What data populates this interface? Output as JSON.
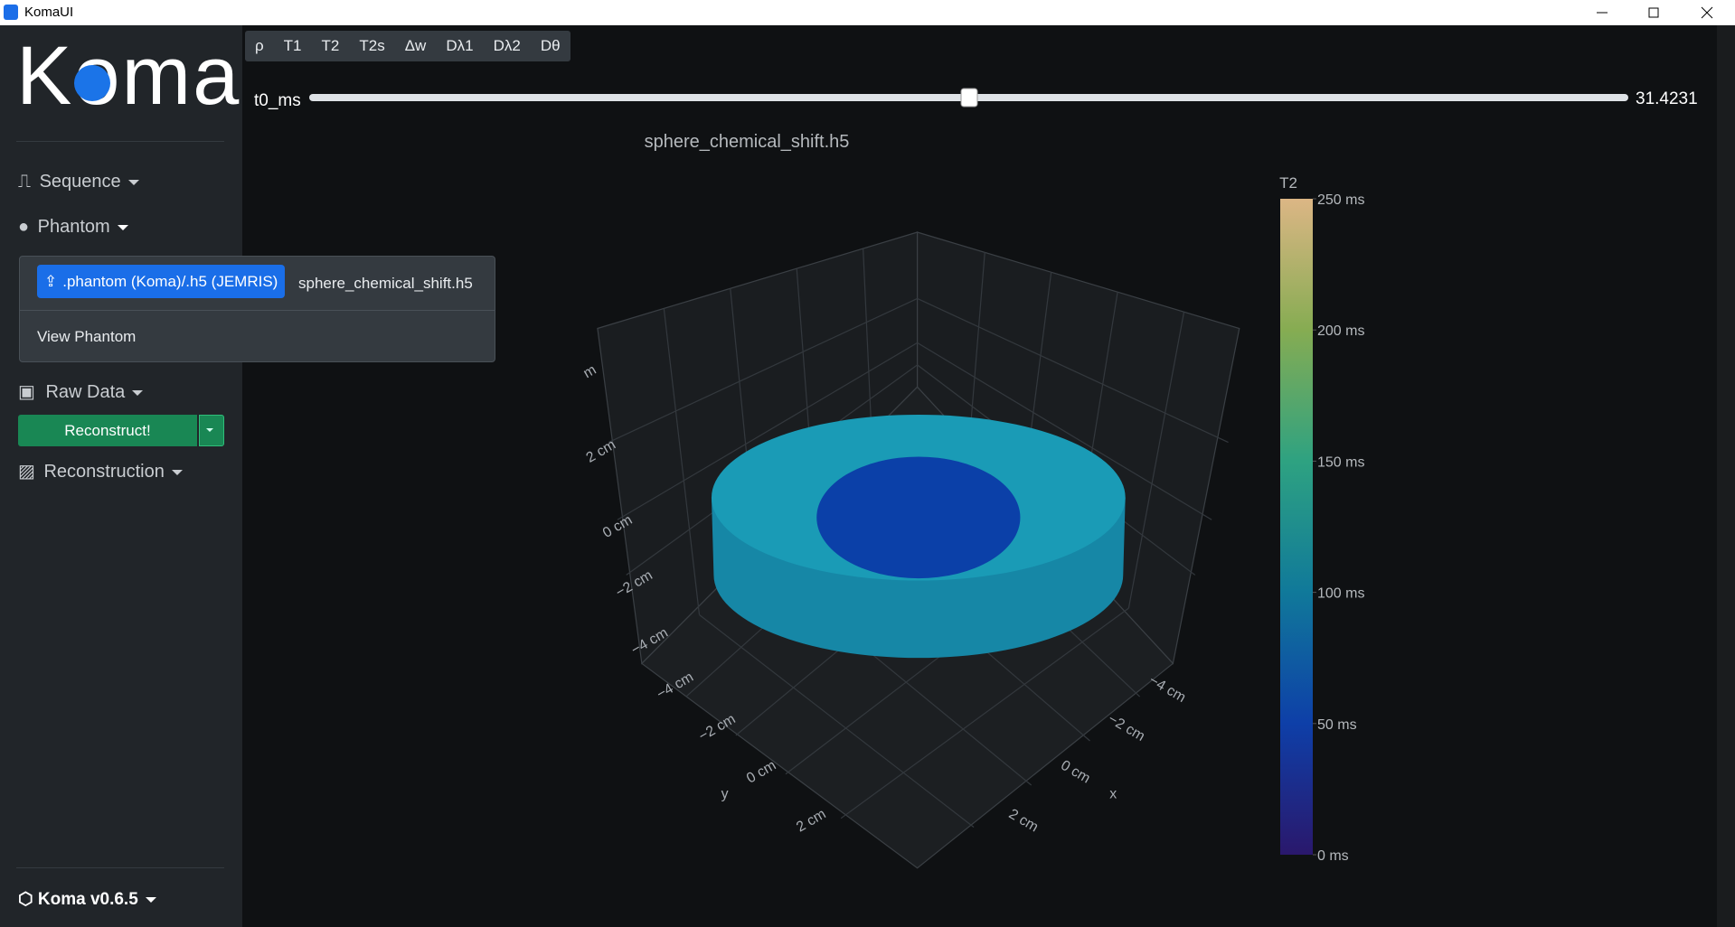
{
  "window": {
    "title": "KomaUI"
  },
  "sidebar": {
    "logo": "Koma",
    "sequence": "Sequence",
    "phantom": {
      "label": "Phantom",
      "upload_button": ".phantom (Koma)/.h5 (JEMRIS)",
      "file_name": "sphere_chemical_shift.h5",
      "view": "View Phantom"
    },
    "raw_data": "Raw Data",
    "reconstruct": "Reconstruct!",
    "reconstruction": "Reconstruction",
    "version": "Koma v0.6.5"
  },
  "tabs": [
    "ρ",
    "T1",
    "T2",
    "T2s",
    "Δw",
    "Dλ1",
    "Dλ2",
    "Dθ"
  ],
  "slider": {
    "label": "t0_ms",
    "value": 31.4231
  },
  "plot": {
    "title": "sphere_chemical_shift.h5",
    "z_axis": {
      "title": "m",
      "ticks": [
        "−4 cm",
        "−2 cm",
        "0 cm",
        "2 cm"
      ]
    },
    "y_axis": {
      "title": "y",
      "ticks": [
        "−4 cm",
        "−2 cm",
        "0 cm",
        "2 cm"
      ]
    },
    "x_axis": {
      "title": "x",
      "ticks": [
        "−4 cm",
        "−2 cm",
        "0 cm",
        "2 cm"
      ]
    },
    "colorbar": {
      "title": "T2",
      "range": [
        0,
        250
      ],
      "ticks": [
        {
          "value": 0,
          "label": "0 ms"
        },
        {
          "value": 50,
          "label": "50 ms"
        },
        {
          "value": 100,
          "label": "100 ms"
        },
        {
          "value": 150,
          "label": "150 ms"
        },
        {
          "value": 200,
          "label": "200 ms"
        },
        {
          "value": 250,
          "label": "250 ms"
        }
      ]
    }
  }
}
